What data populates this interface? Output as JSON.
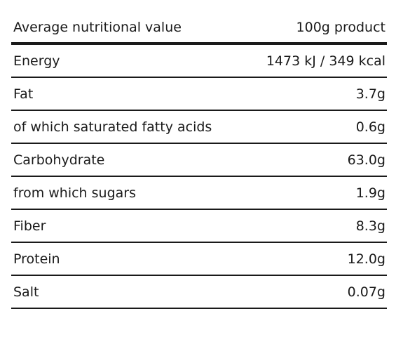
{
  "header": {
    "label": "Average nutritional value",
    "value": "100g product"
  },
  "rows": [
    {
      "label": "Energy",
      "value": "1473 kJ / 349 kcal"
    },
    {
      "label": "Fat",
      "value": "3.7g"
    },
    {
      "label": "of which saturated fatty acids",
      "value": "0.6g"
    },
    {
      "label": "Carbohydrate",
      "value": "63.0g"
    },
    {
      "label": "from which sugars",
      "value": "1.9g"
    },
    {
      "label": "Fiber",
      "value": "8.3g"
    },
    {
      "label": "Protein",
      "value": "12.0g"
    },
    {
      "label": "Salt",
      "value": "0.07g"
    }
  ]
}
